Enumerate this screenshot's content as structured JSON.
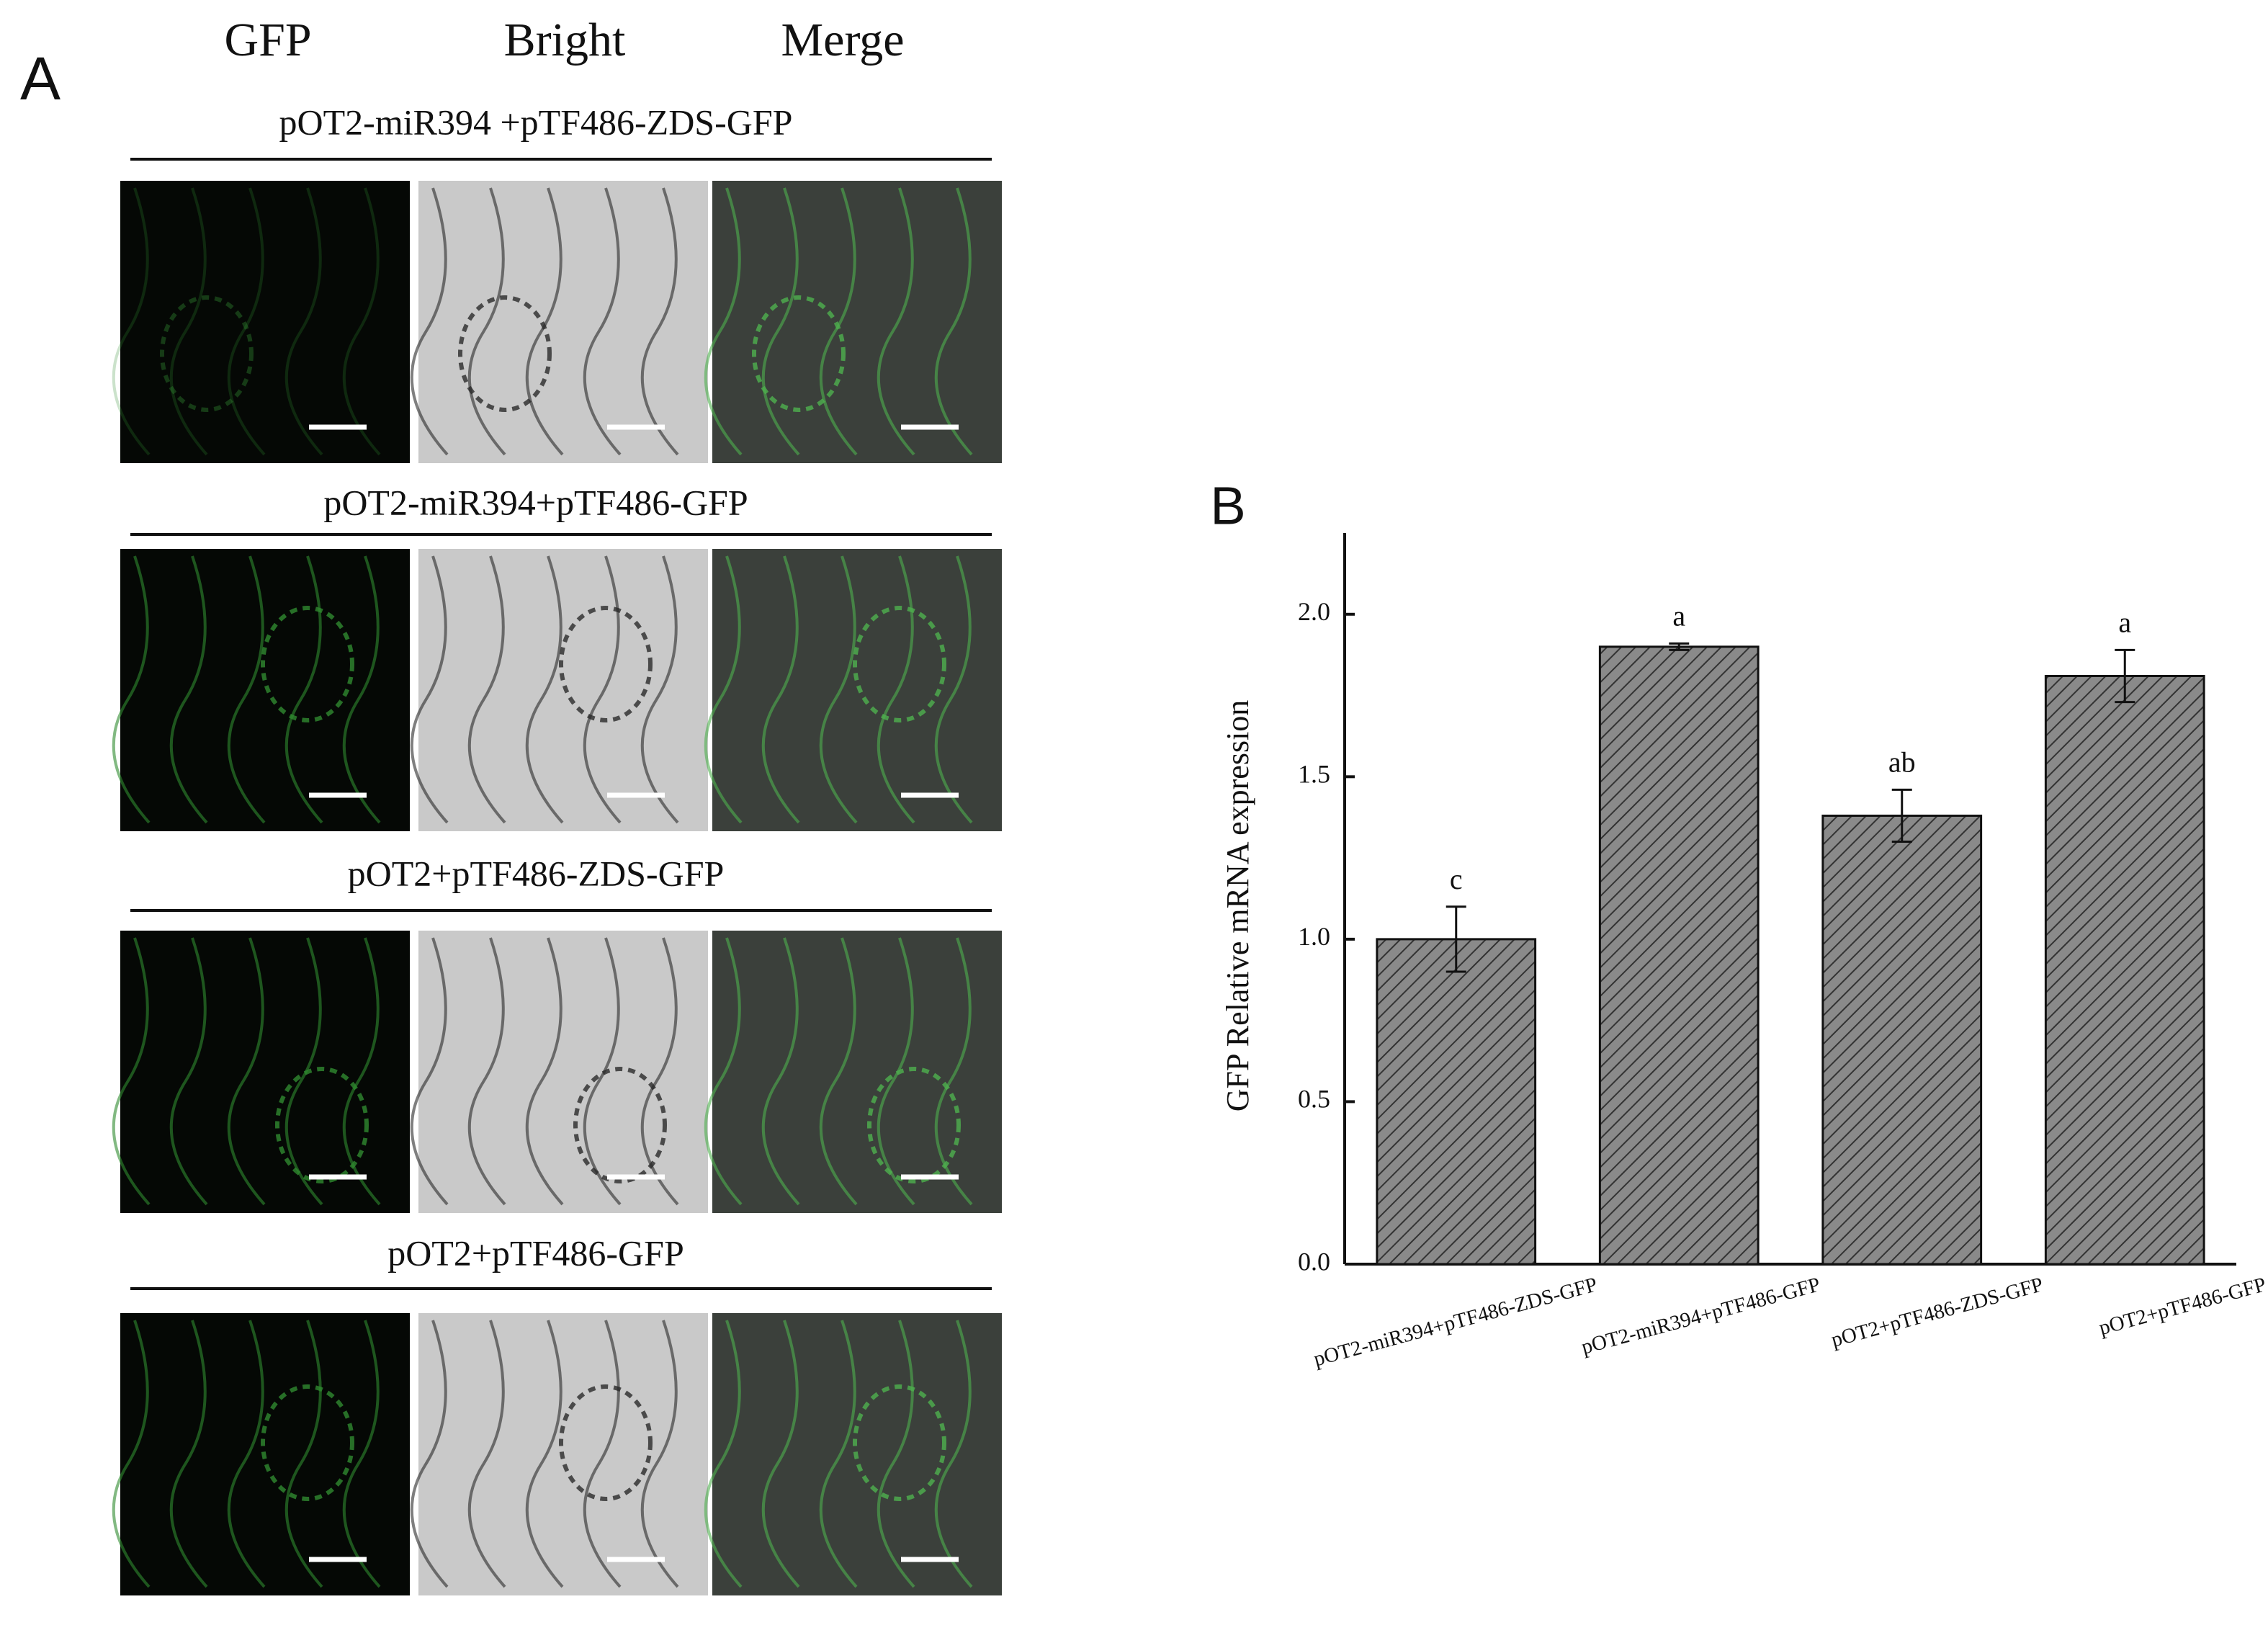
{
  "panel_a": {
    "label": "A",
    "columns": [
      "GFP",
      "Bright",
      "Merge"
    ],
    "rows": [
      "pOT2-miR394 +pTF486-ZDS-GFP",
      "pOT2-miR394+pTF486-GFP",
      "pOT2+pTF486-ZDS-GFP",
      "pOT2+pTF486-GFP"
    ]
  },
  "chart_data": {
    "type": "bar",
    "panel_label": "B",
    "y_label": "GFP Relative mRNA expression",
    "categories": [
      "pOT2-miR394+pTF486-ZDS-GFP",
      "pOT2-miR394+pTF486-GFP",
      "pOT2+pTF486-ZDS-GFP",
      "pOT2+pTF486-GFP"
    ],
    "values": [
      1.0,
      1.9,
      1.38,
      1.81
    ],
    "errors": [
      0.1,
      0.01,
      0.08,
      0.08
    ],
    "annotations": [
      "c",
      "a",
      "ab",
      "a"
    ],
    "color": "#7a7a7a",
    "ylim": [
      0,
      2.25
    ],
    "yticks": [
      {
        "value": 0,
        "label": "0.0"
      },
      {
        "value": 0.5,
        "label": "0.5"
      },
      {
        "value": 1,
        "label": "1.0"
      },
      {
        "value": 1.5,
        "label": "1.5"
      },
      {
        "value": 2,
        "label": "2.0"
      }
    ]
  }
}
